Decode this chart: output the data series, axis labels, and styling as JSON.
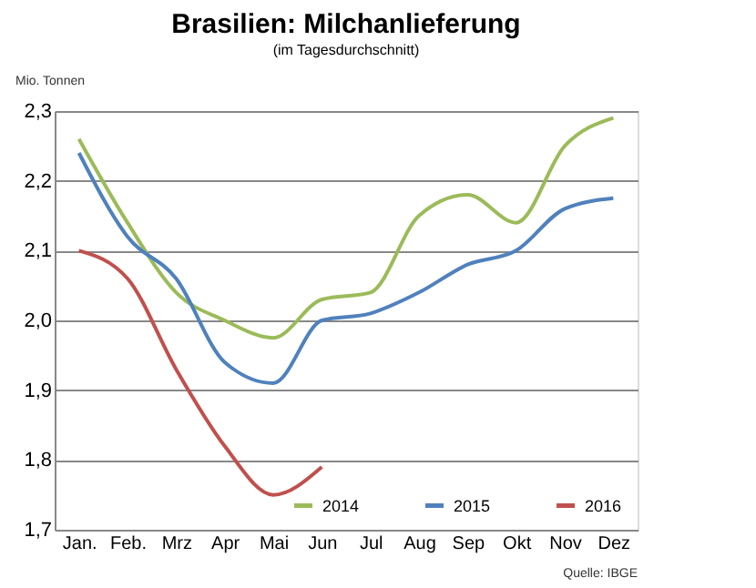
{
  "chart_data": {
    "type": "line",
    "title": "Brasilien: Milchanlieferung",
    "subtitle": "(im Tagesdurchschnitt)",
    "ylabel": "Mio. Tonnen",
    "categories": [
      "Jan.",
      "Feb.",
      "Mrz",
      "Apr",
      "Mai",
      "Jun",
      "Jul",
      "Aug",
      "Sep",
      "Okt",
      "Nov",
      "Dez"
    ],
    "series": [
      {
        "name": "2014",
        "color": "#9bbb59",
        "values": [
          2.26,
          2.14,
          2.04,
          2.0,
          1.975,
          2.03,
          2.04,
          2.15,
          2.18,
          2.14,
          2.25,
          2.29
        ]
      },
      {
        "name": "2015",
        "color": "#4f81bd",
        "values": [
          2.24,
          2.12,
          2.06,
          1.94,
          1.91,
          2.0,
          2.01,
          2.04,
          2.08,
          2.1,
          2.16,
          2.175
        ]
      },
      {
        "name": "2016",
        "color": "#c0504d",
        "values": [
          2.1,
          2.06,
          1.93,
          1.82,
          1.75,
          1.79,
          null,
          null,
          null,
          null,
          null,
          null
        ]
      }
    ],
    "ylim": [
      1.7,
      2.3
    ],
    "yticks": [
      {
        "value": 1.7,
        "label": "1,7"
      },
      {
        "value": 1.8,
        "label": "1,8"
      },
      {
        "value": 1.9,
        "label": "1,9"
      },
      {
        "value": 2.0,
        "label": "2,0"
      },
      {
        "value": 2.1,
        "label": "2,1"
      },
      {
        "value": 2.2,
        "label": "2,2"
      },
      {
        "value": 2.3,
        "label": "2,3"
      }
    ],
    "grid": "y",
    "legend": "bottom right",
    "marker": "none",
    "line_style": "solid",
    "annotations": [
      "Quelle: IBGE"
    ]
  }
}
